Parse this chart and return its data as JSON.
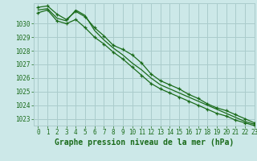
{
  "title": "Graphe pression niveau de la mer (hPa)",
  "background_color": "#cce8e8",
  "grid_color": "#aacccc",
  "line_color": "#1a6b1a",
  "marker_color": "#1a6b1a",
  "xlim": [
    -0.5,
    23
  ],
  "ylim": [
    1022.5,
    1031.5
  ],
  "yticks": [
    1023,
    1024,
    1025,
    1026,
    1027,
    1028,
    1029,
    1030
  ],
  "xticks": [
    0,
    1,
    2,
    3,
    4,
    5,
    6,
    7,
    8,
    9,
    10,
    11,
    12,
    13,
    14,
    15,
    16,
    17,
    18,
    19,
    20,
    21,
    22,
    23
  ],
  "series": [
    [
      1031.2,
      1031.3,
      1030.7,
      1030.3,
      1030.9,
      1030.5,
      1029.7,
      1029.1,
      1028.4,
      1028.1,
      1027.7,
      1027.1,
      1026.3,
      1025.8,
      1025.5,
      1025.2,
      1024.8,
      1024.5,
      1024.1,
      1023.8,
      1023.6,
      1023.3,
      1023.0,
      1022.7
    ],
    [
      1031.0,
      1031.1,
      1030.4,
      1030.2,
      1031.0,
      1030.6,
      1029.5,
      1028.8,
      1028.2,
      1027.7,
      1027.1,
      1026.6,
      1026.0,
      1025.5,
      1025.2,
      1024.9,
      1024.6,
      1024.3,
      1024.0,
      1023.7,
      1023.4,
      1023.1,
      1022.8,
      1022.6
    ],
    [
      1030.8,
      1031.0,
      1030.2,
      1030.0,
      1030.3,
      1029.7,
      1029.0,
      1028.5,
      1027.9,
      1027.4,
      1026.8,
      1026.2,
      1025.6,
      1025.2,
      1024.9,
      1024.6,
      1024.3,
      1024.0,
      1023.7,
      1023.4,
      1023.2,
      1022.9,
      1022.7,
      1022.5
    ]
  ],
  "marker_series": [
    0,
    2
  ],
  "marker_size": 3.5,
  "line_width": 0.9,
  "font_color": "#1a6b1a",
  "title_fontsize": 7,
  "tick_fontsize": 5.5
}
